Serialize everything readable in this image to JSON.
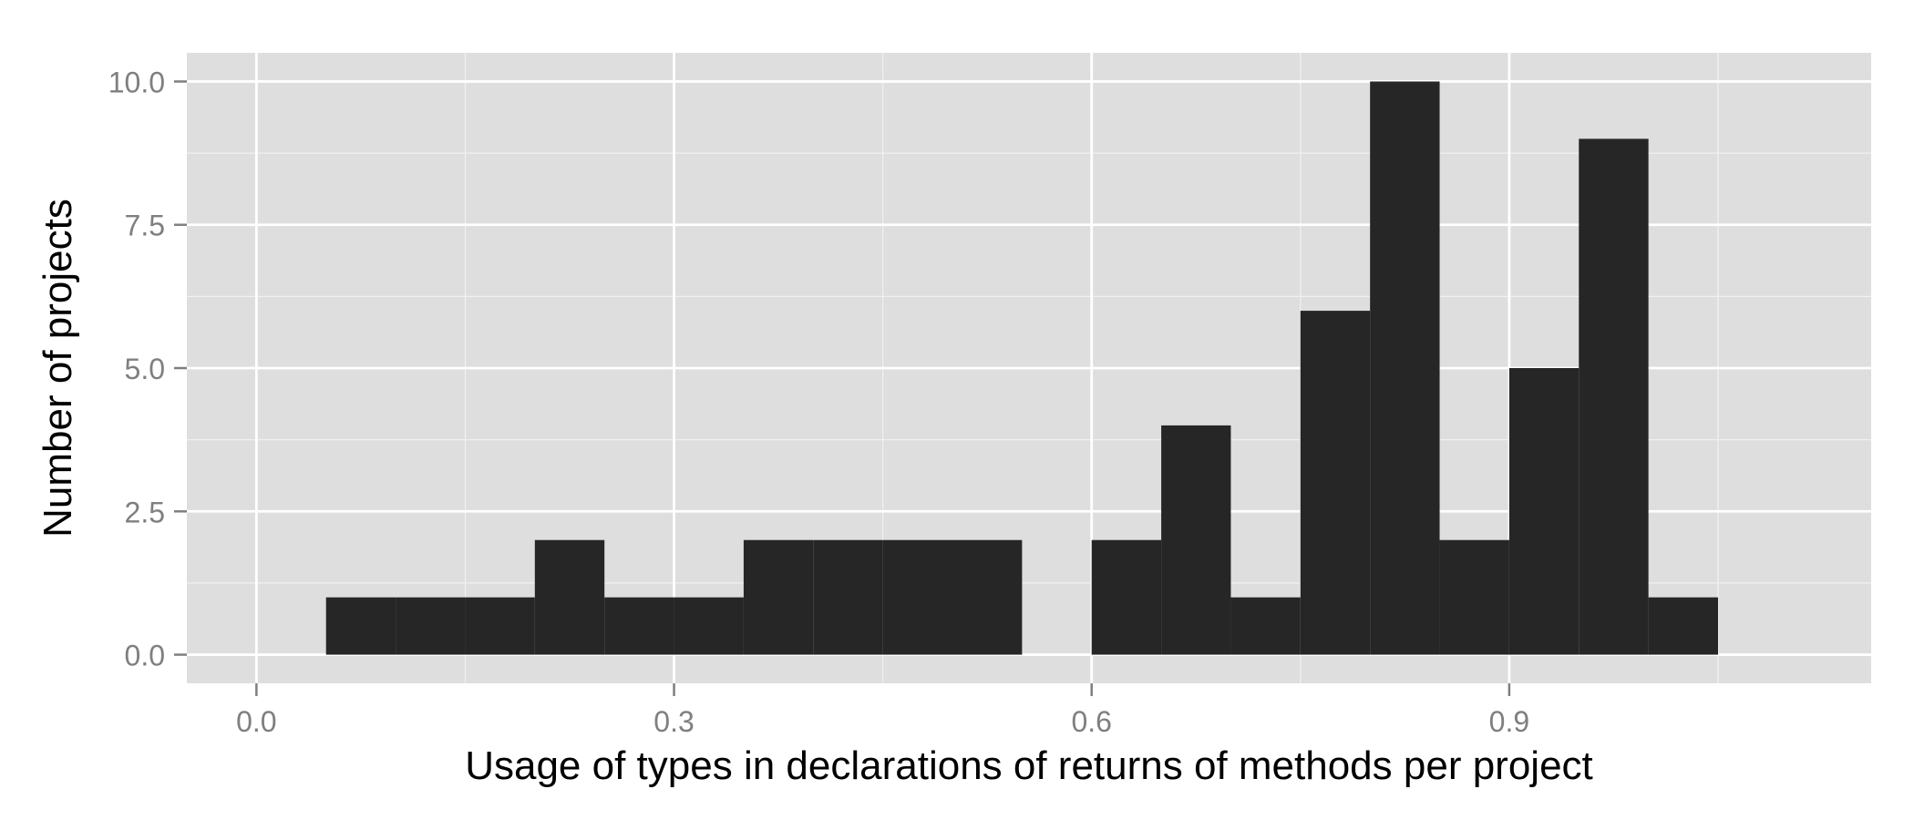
{
  "chart_data": {
    "type": "bar",
    "title": "",
    "xlabel": "Usage of types in declarations of returns of methods per project",
    "ylabel": "Number of projects",
    "xlim": [
      -0.05,
      1.16
    ],
    "ylim": [
      -0.5,
      10.5
    ],
    "x_ticks": [
      0.0,
      0.3,
      0.6,
      0.9
    ],
    "x_tick_labels": [
      "0.0",
      "0.3",
      "0.6",
      "0.9"
    ],
    "y_ticks": [
      0.0,
      2.5,
      5.0,
      7.5,
      10.0
    ],
    "y_tick_labels": [
      "0.0",
      "2.5",
      "5.0",
      "7.5",
      "10.0"
    ],
    "grid": true,
    "bin_width": 0.05,
    "bins": [
      {
        "x_start": 0.05,
        "x_end": 0.1,
        "count": 1
      },
      {
        "x_start": 0.1,
        "x_end": 0.15,
        "count": 1
      },
      {
        "x_start": 0.15,
        "x_end": 0.2,
        "count": 1
      },
      {
        "x_start": 0.2,
        "x_end": 0.25,
        "count": 2
      },
      {
        "x_start": 0.25,
        "x_end": 0.3,
        "count": 1
      },
      {
        "x_start": 0.3,
        "x_end": 0.35,
        "count": 1
      },
      {
        "x_start": 0.35,
        "x_end": 0.4,
        "count": 2
      },
      {
        "x_start": 0.4,
        "x_end": 0.45,
        "count": 2
      },
      {
        "x_start": 0.45,
        "x_end": 0.5,
        "count": 2
      },
      {
        "x_start": 0.5,
        "x_end": 0.55,
        "count": 2
      },
      {
        "x_start": 0.55,
        "x_end": 0.6,
        "count": 0
      },
      {
        "x_start": 0.6,
        "x_end": 0.65,
        "count": 2
      },
      {
        "x_start": 0.65,
        "x_end": 0.7,
        "count": 4
      },
      {
        "x_start": 0.7,
        "x_end": 0.75,
        "count": 1
      },
      {
        "x_start": 0.75,
        "x_end": 0.8,
        "count": 6
      },
      {
        "x_start": 0.8,
        "x_end": 0.85,
        "count": 10
      },
      {
        "x_start": 0.85,
        "x_end": 0.9,
        "count": 2
      },
      {
        "x_start": 0.9,
        "x_end": 0.95,
        "count": 5
      },
      {
        "x_start": 0.95,
        "x_end": 1.0,
        "count": 9
      },
      {
        "x_start": 1.0,
        "x_end": 1.05,
        "count": 1
      }
    ],
    "colors": {
      "panel_background": "#DEDEDE",
      "grid_major": "#FFFFFF",
      "grid_minor": "#F0F0F0",
      "bar_fill": "#262626",
      "tick_label": "#7F7F7F",
      "axis_title": "#000000"
    }
  }
}
